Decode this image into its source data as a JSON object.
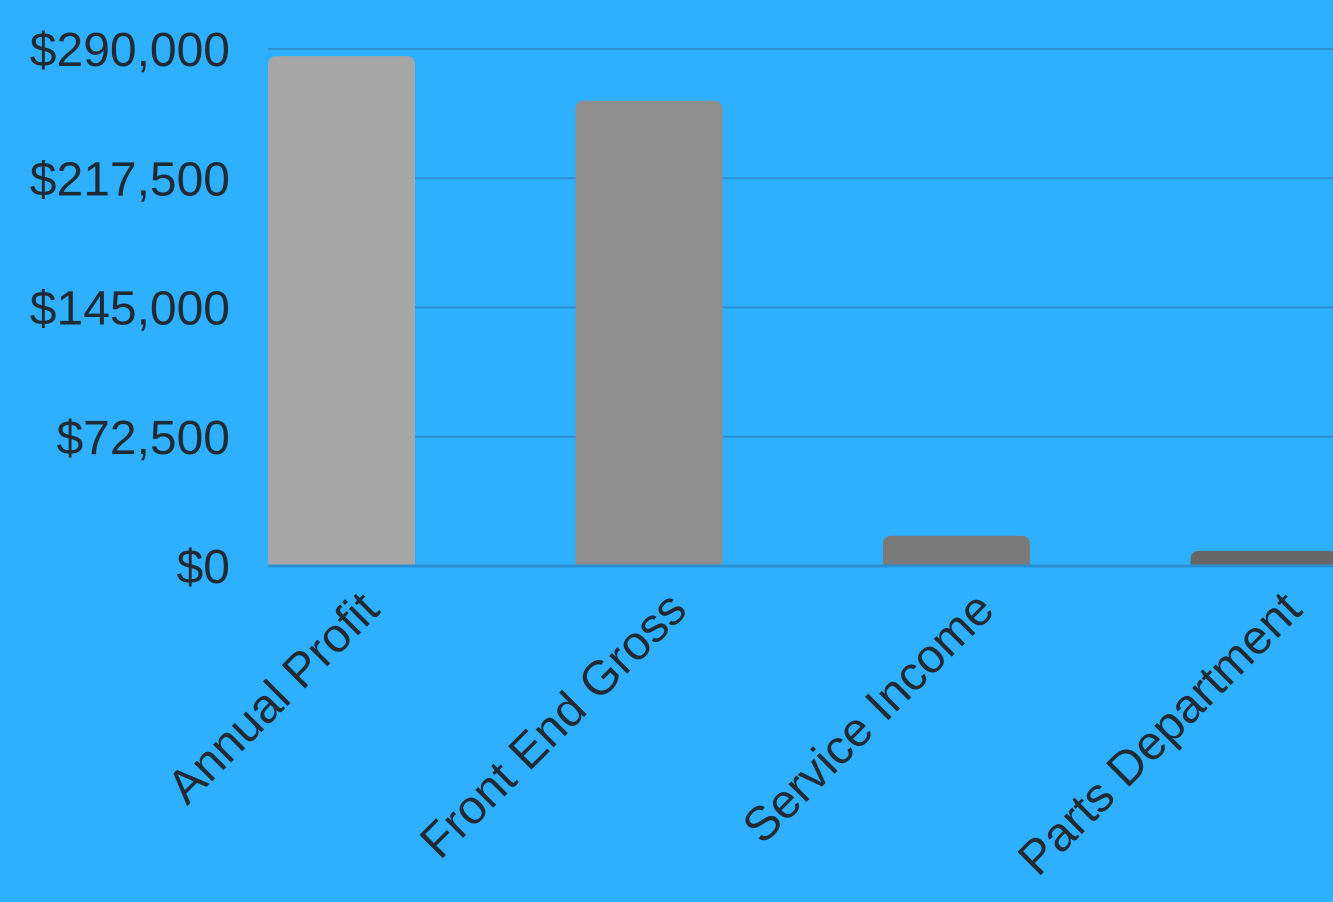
{
  "chart_data": {
    "type": "bar",
    "title": "",
    "xlabel": "",
    "ylabel": "",
    "categories": [
      "Annual Profit",
      "Front End Gross",
      "Service Income",
      "Parts Department"
    ],
    "values": [
      286000,
      261000,
      17000,
      8500
    ],
    "ylim": [
      0,
      290000
    ],
    "yticks": [
      0,
      72500,
      145000,
      217500,
      290000
    ],
    "ytick_labels": [
      "$0",
      "$72,500",
      "$145,000",
      "$217,500",
      "$290,000"
    ],
    "grid": true,
    "legend": "none"
  },
  "colors": {
    "background": "#2fb0ff",
    "gridline": "#2a8fd0",
    "text": "#1f2a33",
    "bars": [
      "#a6a6a6",
      "#8e8e8e",
      "#7a7a7a",
      "#666666"
    ]
  }
}
